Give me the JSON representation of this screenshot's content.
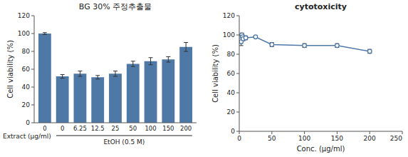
{
  "chart_data": [
    {
      "type": "bar",
      "title": "BG 30% 주정추출물",
      "categories": [
        "0",
        "0",
        "6.25",
        "12.5",
        "25",
        "50",
        "100",
        "150",
        "200"
      ],
      "values": [
        100,
        52,
        55,
        51,
        55,
        66,
        69,
        71,
        85
      ],
      "errors": [
        1,
        2,
        3,
        2,
        3,
        3,
        4,
        3,
        5
      ],
      "ylabel": "Cell viability (%)",
      "ylim": [
        0,
        120
      ],
      "yticks": [
        0,
        20,
        40,
        60,
        80,
        100,
        120
      ],
      "annotations": [
        "Extract (μg/ml)",
        "EtOH (0.5 M)"
      ]
    },
    {
      "type": "line",
      "title": "cytotoxicity",
      "x": [
        1,
        2,
        3,
        4,
        5,
        6,
        10,
        25,
        50,
        100,
        150,
        200
      ],
      "values": [
        97,
        95,
        93,
        100,
        98,
        96,
        97,
        98,
        90,
        89,
        89,
        83
      ],
      "errors": [
        3,
        3,
        4,
        2,
        2,
        2,
        2,
        1,
        2,
        2,
        2,
        2
      ],
      "xlabel": "Conc. (μg/ml)",
      "ylabel": "Cell viability (%)",
      "xlim": [
        0,
        250
      ],
      "ylim": [
        0,
        120
      ],
      "xticks": [
        0,
        50,
        100,
        150,
        200,
        250
      ],
      "yticks": [
        0,
        20,
        40,
        60,
        80,
        100,
        120
      ],
      "marker": "circle"
    }
  ]
}
